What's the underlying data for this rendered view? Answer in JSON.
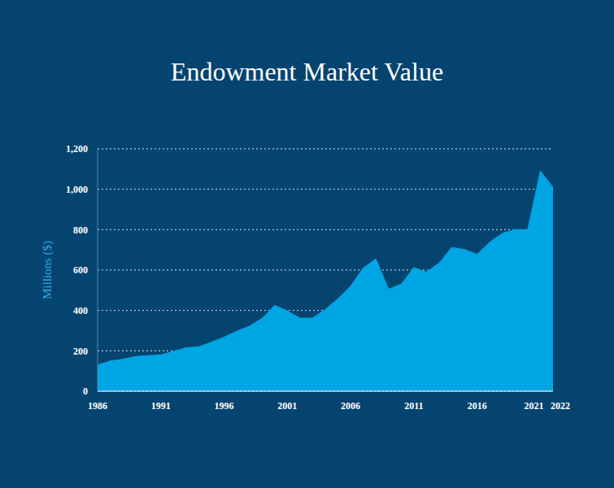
{
  "chart_data": {
    "type": "area",
    "title": "Endowment Market Value",
    "y_label": "Millions ($)",
    "x": [
      1986,
      1987,
      1988,
      1989,
      1990,
      1991,
      1992,
      1993,
      1994,
      1995,
      1996,
      1997,
      1998,
      1999,
      2000,
      2001,
      2002,
      2003,
      2004,
      2005,
      2006,
      2007,
      2008,
      2009,
      2010,
      2011,
      2012,
      2013,
      2014,
      2015,
      2016,
      2017,
      2018,
      2019,
      2020,
      2021,
      2022
    ],
    "values": [
      130,
      150,
      158,
      172,
      176,
      180,
      197,
      215,
      220,
      243,
      268,
      297,
      322,
      360,
      425,
      398,
      362,
      362,
      405,
      458,
      520,
      610,
      655,
      505,
      530,
      612,
      590,
      635,
      712,
      702,
      678,
      738,
      782,
      800,
      800,
      1090,
      1010
    ],
    "color": "#00a5e3",
    "xlim": [
      1986,
      2022
    ],
    "xticks": [
      1986,
      1991,
      1996,
      2001,
      2006,
      2011,
      2016,
      2021,
      2022
    ],
    "ylim": [
      0,
      1200
    ],
    "yticks": [
      0,
      200,
      400,
      600,
      800,
      {
        "value": 1000,
        "label": "1,000"
      },
      {
        "value": 1200,
        "label": "1,200"
      }
    ],
    "grid": true
  }
}
